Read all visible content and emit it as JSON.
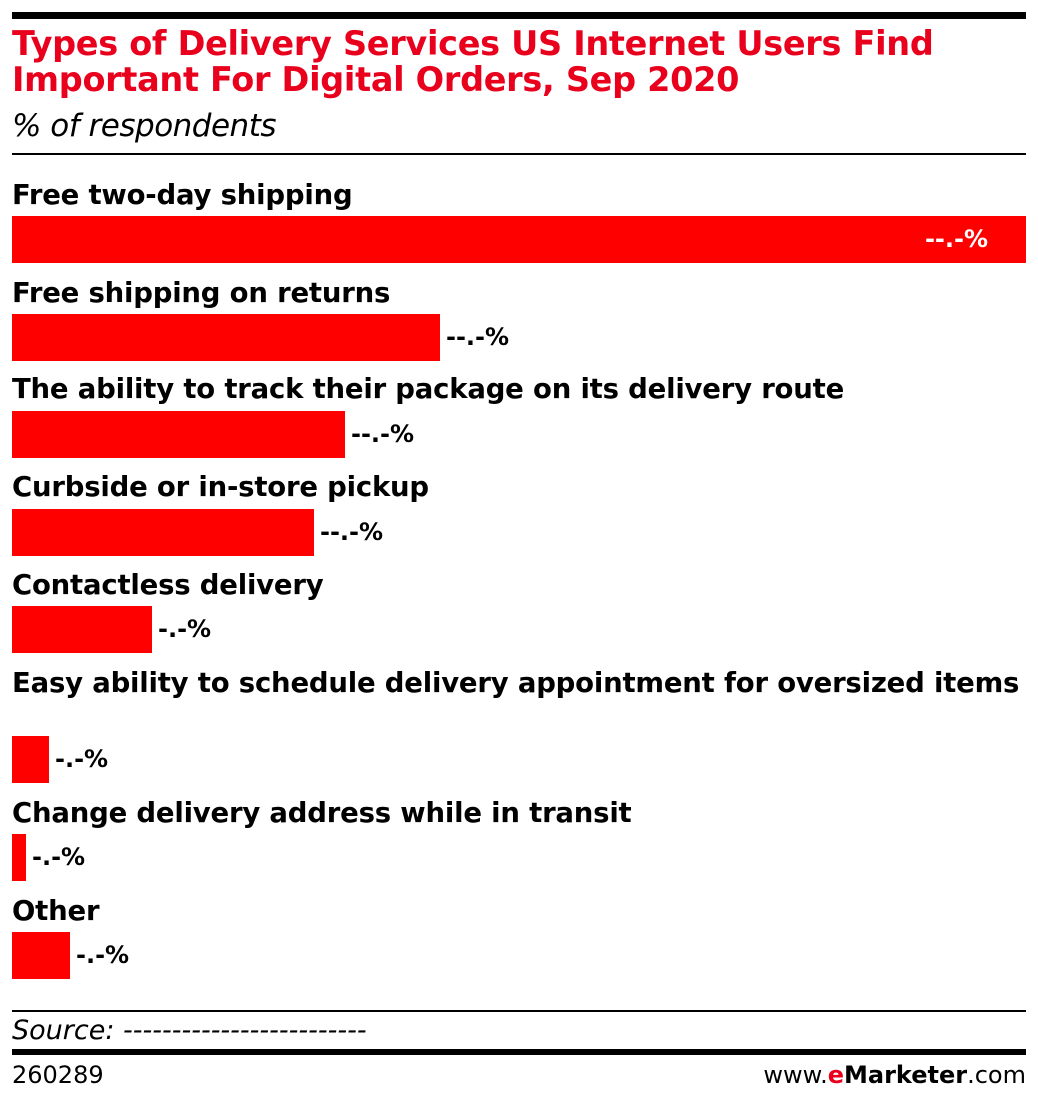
{
  "chart_data": {
    "type": "bar",
    "orientation": "horizontal",
    "title": "Types of Delivery Services US Internet Users Find Important For Digital Orders, Sep 2020",
    "subtitle": "% of respondents",
    "categories": [
      "Free two-day shipping",
      "Free shipping on returns",
      "The ability to track their package on its delivery route",
      "Curbside or in-store pickup",
      "Contactless delivery",
      "Easy ability to schedule delivery appointment for oversized items",
      "Change delivery address while in transit",
      "Other"
    ],
    "values": [
      100,
      42.2,
      32.8,
      29.8,
      13.8,
      3.6,
      1.4,
      5.7
    ],
    "value_labels": [
      "--.-%",
      "--.-%",
      "--.-%",
      "--.-%",
      "-.-%",
      "-.-%",
      "-.-%",
      "-.-%"
    ],
    "xlim": [
      0,
      100
    ],
    "bar_color": "#ff0000",
    "title_color": "#e8001c",
    "grid": false,
    "legend": "none"
  },
  "footer": {
    "source": "Source: -------------------------",
    "chart_id": "260289",
    "brand_prefix": "www.",
    "brand_e": "e",
    "brand_name": "Marketer",
    "brand_suffix": ".com"
  }
}
